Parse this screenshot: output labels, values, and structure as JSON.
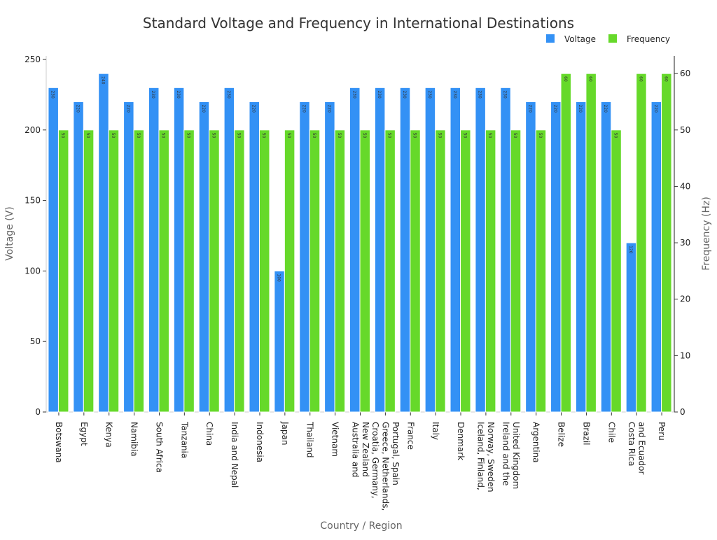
{
  "chart_data": {
    "type": "bar",
    "title": "Standard Voltage and Frequency in International Destinations",
    "xlabel": "Country / Region",
    "ylabel": "Voltage (V)",
    "y2label": "Frequency (Hz)",
    "ylim": [
      0,
      250
    ],
    "y2lim": [
      0,
      62.5
    ],
    "yticks": [
      0,
      50,
      100,
      150,
      200,
      250
    ],
    "y2ticks": [
      0,
      10,
      20,
      30,
      40,
      50,
      60
    ],
    "grid": false,
    "legend_position": "top-right",
    "categories": [
      [
        "Botswana"
      ],
      [
        "Egypt"
      ],
      [
        "Kenya"
      ],
      [
        "Namibia"
      ],
      [
        "South Africa"
      ],
      [
        "Tanzania"
      ],
      [
        "China"
      ],
      [
        "India and Nepal"
      ],
      [
        "Indonesia"
      ],
      [
        "Japan"
      ],
      [
        "Thailand"
      ],
      [
        "Vietnam"
      ],
      [
        "Australia and",
        "New Zealand"
      ],
      [
        "Croatia, Germany,",
        "Greece, Netherlands,",
        "Portugal, Spain"
      ],
      [
        "France"
      ],
      [
        "Italy"
      ],
      [
        "Denmark"
      ],
      [
        "Iceland, Finland,",
        "Norway, Sweden"
      ],
      [
        "Ireland and the",
        "United Kingdom"
      ],
      [
        "Argentina"
      ],
      [
        "Belize"
      ],
      [
        "Brazil"
      ],
      [
        "Chile"
      ],
      [
        "Costa Rica",
        "and Ecuador"
      ],
      [
        "Peru"
      ]
    ],
    "series": [
      {
        "name": "Voltage",
        "axis": "left",
        "color": "#3391f5",
        "values": [
          230,
          220,
          240,
          220,
          230,
          230,
          220,
          230,
          220,
          100,
          220,
          220,
          230,
          230,
          230,
          230,
          230,
          230,
          230,
          220,
          220,
          220,
          220,
          120,
          220
        ]
      },
      {
        "name": "Frequency",
        "axis": "right",
        "color": "#66d92a",
        "values": [
          50,
          50,
          50,
          50,
          50,
          50,
          50,
          50,
          50,
          50,
          50,
          50,
          50,
          50,
          50,
          50,
          50,
          50,
          50,
          50,
          60,
          60,
          50,
          60,
          60
        ]
      }
    ]
  }
}
